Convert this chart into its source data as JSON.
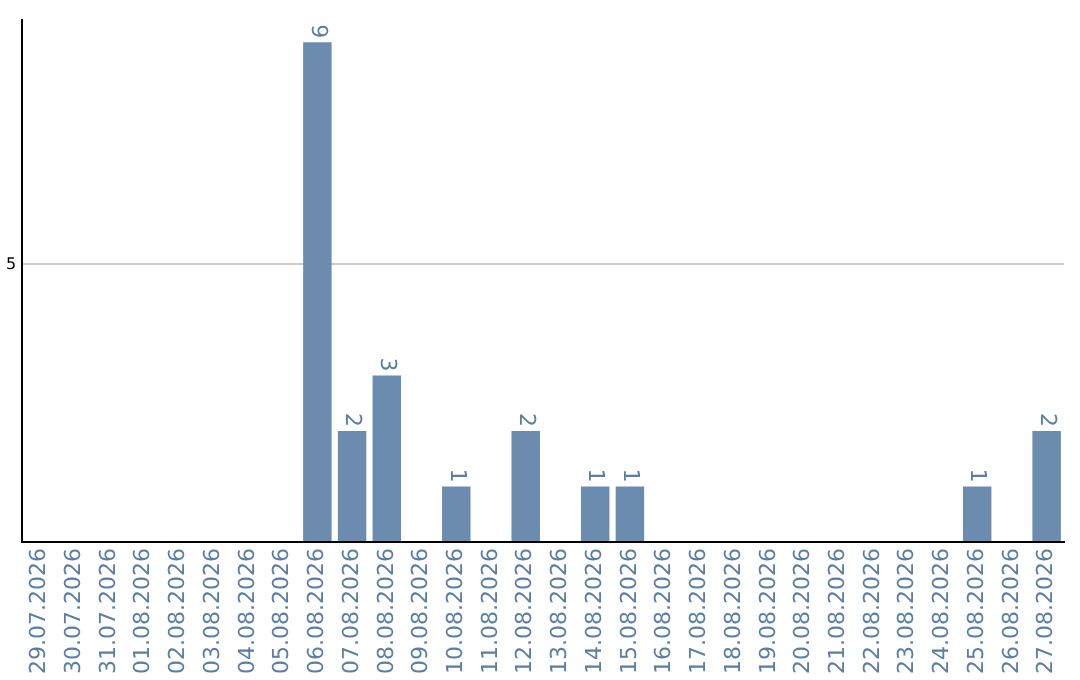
{
  "chart_data": {
    "type": "bar",
    "categories": [
      "29.07.2026",
      "30.07.2026",
      "31.07.2026",
      "01.08.2026",
      "02.08.2026",
      "03.08.2026",
      "04.08.2026",
      "05.08.2026",
      "06.08.2026",
      "07.08.2026",
      "08.08.2026",
      "09.08.2026",
      "10.08.2026",
      "11.08.2026",
      "12.08.2026",
      "13.08.2026",
      "14.08.2026",
      "15.08.2026",
      "16.08.2026",
      "17.08.2026",
      "18.08.2026",
      "19.08.2026",
      "20.08.2026",
      "21.08.2026",
      "22.08.2026",
      "23.08.2026",
      "24.08.2026",
      "25.08.2026",
      "26.08.2026",
      "27.08.2026"
    ],
    "values": [
      0,
      0,
      0,
      0,
      0,
      0,
      0,
      0,
      9,
      2,
      3,
      0,
      1,
      0,
      2,
      0,
      1,
      1,
      0,
      0,
      0,
      0,
      0,
      0,
      0,
      0,
      0,
      1,
      0,
      2
    ],
    "value_labels": [
      null,
      null,
      null,
      null,
      null,
      null,
      null,
      null,
      "9",
      "2",
      "3",
      null,
      "1",
      null,
      "2",
      null,
      "1",
      "1",
      null,
      null,
      null,
      null,
      null,
      null,
      null,
      null,
      null,
      "1",
      null,
      "2"
    ],
    "color": "#6b8cae",
    "ylim": [
      0,
      9.4
    ],
    "yticks": [
      {
        "value": 0,
        "label": null
      },
      5
    ],
    "grid": "y",
    "legend": false
  }
}
